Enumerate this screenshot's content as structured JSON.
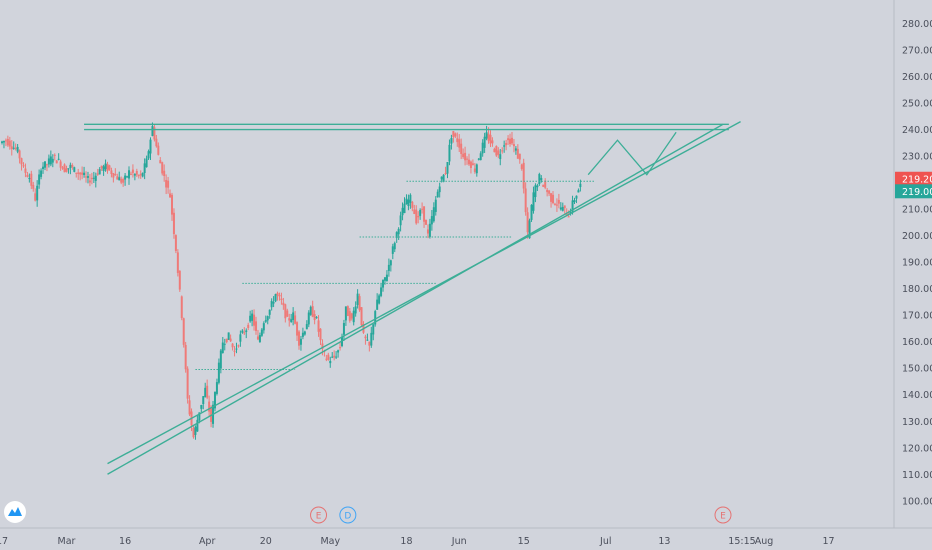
{
  "colors": {
    "background": "#d1d4dc",
    "up": "#26a69a",
    "down": "#ef7a78",
    "trendline": "#3dae97",
    "price_badge_red": "#ef5350",
    "price_badge_green": "#26a69a",
    "earnings_marker": "#e57373",
    "dividend_marker": "#42a5f5",
    "axis_text": "#4a4e5a"
  },
  "icons": {
    "logo": "tradingview-cloud-icon"
  },
  "price_badges": [
    {
      "label": "219.20",
      "value": 219.2,
      "color": "red"
    },
    {
      "label": "219.00",
      "value": 219.0,
      "color": "green"
    }
  ],
  "event_markers": [
    {
      "label": "E",
      "type": "earnings",
      "date_index": 54
    },
    {
      "label": "D",
      "type": "dividend",
      "date_index": 59
    },
    {
      "label": "E",
      "type": "earnings",
      "date_index": 123
    }
  ],
  "time_label": "15:15",
  "chart_data": {
    "type": "candlestick",
    "yaxis": {
      "ticks": [
        "100.00",
        "110.00",
        "120.00",
        "130.00",
        "140.00",
        "150.00",
        "160.00",
        "170.00",
        "180.00",
        "190.00",
        "200.00",
        "210.00",
        "220.00",
        "230.00",
        "240.00",
        "250.00",
        "260.00",
        "270.00",
        "280.00"
      ],
      "ylim": [
        92,
        287
      ]
    },
    "xaxis": {
      "labels": [
        {
          "text": "17",
          "index": 0
        },
        {
          "text": "Mar",
          "index": 11
        },
        {
          "text": "16",
          "index": 21
        },
        {
          "text": "Apr",
          "index": 35
        },
        {
          "text": "20",
          "index": 45
        },
        {
          "text": "May",
          "index": 56
        },
        {
          "text": "18",
          "index": 69
        },
        {
          "text": "Jun",
          "index": 78
        },
        {
          "text": "15",
          "index": 89
        },
        {
          "text": "Jul",
          "index": 103
        },
        {
          "text": "13",
          "index": 113
        },
        {
          "text": "Aug",
          "index": 130
        },
        {
          "text": "17",
          "index": 141
        }
      ],
      "xlim": [
        0,
        152
      ]
    },
    "closes": [
      236,
      234,
      232,
      225,
      222,
      214,
      226,
      227,
      230,
      228,
      225,
      226,
      224,
      223,
      221,
      222,
      225,
      226,
      224,
      222,
      220,
      224,
      223,
      222,
      228,
      241,
      230,
      222,
      215,
      195,
      170,
      138,
      124,
      134,
      142,
      130,
      146,
      160,
      162,
      156,
      162,
      165,
      170,
      160,
      168,
      172,
      178,
      175,
      168,
      170,
      160,
      165,
      172,
      168,
      156,
      153,
      154,
      158,
      172,
      168,
      178,
      162,
      158,
      172,
      180,
      186,
      195,
      204,
      212,
      214,
      206,
      210,
      200,
      210,
      220,
      224,
      238,
      236,
      230,
      228,
      225,
      232,
      238,
      234,
      230,
      235,
      236,
      232,
      226,
      200,
      216,
      222,
      218,
      214,
      212,
      210,
      208,
      214,
      219
    ],
    "trendlines": [
      {
        "name": "resistance-upper",
        "points": [
          [
            14,
            242
          ],
          [
            124,
            242
          ]
        ]
      },
      {
        "name": "resistance-lower",
        "points": [
          [
            14,
            240
          ],
          [
            124,
            240
          ]
        ]
      },
      {
        "name": "support-upper",
        "points": [
          [
            18,
            114
          ],
          [
            126,
            243
          ]
        ]
      },
      {
        "name": "support-lower",
        "points": [
          [
            18,
            110
          ],
          [
            123,
            242
          ]
        ]
      }
    ],
    "horizontal_levels": [
      {
        "value": 149.5,
        "from": 33,
        "to": 50
      },
      {
        "value": 182,
        "from": 41,
        "to": 74
      },
      {
        "value": 199.5,
        "from": 61,
        "to": 87
      },
      {
        "value": 220.5,
        "from": 69,
        "to": 101
      }
    ],
    "projection": [
      [
        100,
        223
      ],
      [
        105,
        236
      ],
      [
        110,
        223
      ],
      [
        115,
        239
      ]
    ]
  }
}
